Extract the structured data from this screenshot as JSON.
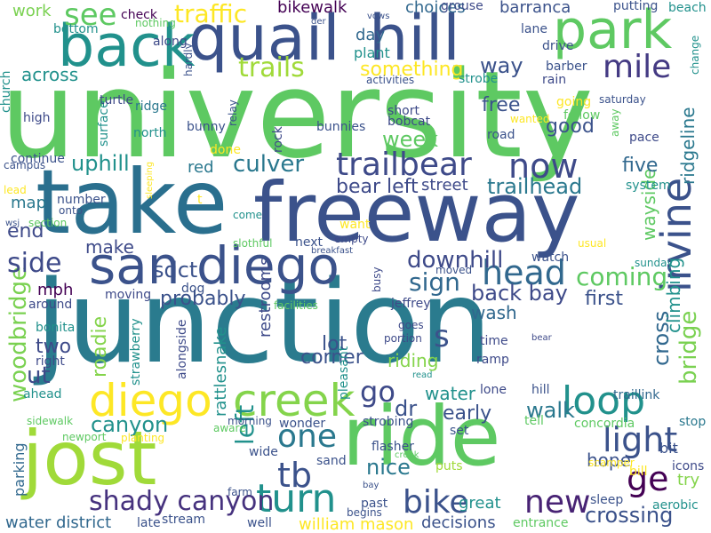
{
  "palette": {
    "purple": "#440154",
    "indigo": "#3b528b",
    "teal": "#21918c",
    "green": "#5ec962",
    "yellow": "#fde725"
  },
  "words": [
    {
      "text": "university",
      "color": "#5ec962"
    },
    {
      "text": "junction",
      "color": "#2a7b8e"
    },
    {
      "text": "take",
      "color": "#2a6f8e"
    },
    {
      "text": "freeway",
      "color": "#3b528b"
    },
    {
      "text": "ride",
      "color": "#5ec962"
    },
    {
      "text": "jost",
      "color": "#a0da39"
    },
    {
      "text": "quail",
      "color": "#3b528b"
    },
    {
      "text": "hill",
      "color": "#3b528b"
    },
    {
      "text": "back",
      "color": "#21918c"
    },
    {
      "text": "park",
      "color": "#5ec962"
    },
    {
      "text": "san diego",
      "color": "#3b528b"
    },
    {
      "text": "creek",
      "color": "#84d44b"
    },
    {
      "text": "diego",
      "color": "#fde725"
    },
    {
      "text": "trailbear",
      "color": "#3e4a89"
    },
    {
      "text": "turn",
      "color": "#21918c"
    },
    {
      "text": "loop",
      "color": "#21918c"
    },
    {
      "text": "irvine",
      "color": "#3b528b"
    },
    {
      "text": "head",
      "color": "#31688e"
    },
    {
      "text": "tb",
      "color": "#3b528b"
    },
    {
      "text": "ge",
      "color": "#440154"
    },
    {
      "text": "light",
      "color": "#3b528b"
    },
    {
      "text": "mile",
      "color": "#443a83"
    },
    {
      "text": "now",
      "color": "#3e4a89"
    },
    {
      "text": "bike",
      "color": "#3b528b"
    },
    {
      "text": "new",
      "color": "#482374"
    },
    {
      "text": "one",
      "color": "#2a788e"
    },
    {
      "text": "shady canyon",
      "color": "#46327e"
    },
    {
      "text": "woodbridge",
      "color": "#7ad151"
    },
    {
      "text": "side",
      "color": "#3e4a89"
    },
    {
      "text": "trails",
      "color": "#a0da39"
    },
    {
      "text": "traffic",
      "color": "#fde725"
    },
    {
      "text": "see",
      "color": "#5ec962"
    },
    {
      "text": "s",
      "color": "#3b528b"
    },
    {
      "text": "culver",
      "color": "#2a788e"
    },
    {
      "text": "sign",
      "color": "#31688e"
    },
    {
      "text": "coming",
      "color": "#5ec962"
    },
    {
      "text": "bridge",
      "color": "#7ad151"
    },
    {
      "text": "go",
      "color": "#3e4a89"
    },
    {
      "text": "left",
      "color": "#21918c"
    },
    {
      "text": "bear left",
      "color": "#3e4a89"
    },
    {
      "text": "trailhead",
      "color": "#2a788e"
    },
    {
      "text": "downhill",
      "color": "#3e4a89"
    },
    {
      "text": "back bay",
      "color": "#3e4a89"
    },
    {
      "text": "uphill",
      "color": "#21918c"
    },
    {
      "text": "canyon",
      "color": "#21918c"
    },
    {
      "text": "crossing",
      "color": "#3b528b"
    },
    {
      "text": "cross",
      "color": "#31688e"
    },
    {
      "text": "week",
      "color": "#5ec962"
    },
    {
      "text": "probably",
      "color": "#3b528b"
    },
    {
      "text": "ridgeline",
      "color": "#2a788e"
    },
    {
      "text": "wayside",
      "color": "#5ec962"
    },
    {
      "text": "climbing",
      "color": "#21918c"
    },
    {
      "text": "walk",
      "color": "#2a788e"
    },
    {
      "text": "early",
      "color": "#3b528b"
    },
    {
      "text": "nice",
      "color": "#2a788e"
    },
    {
      "text": "first",
      "color": "#3b528b"
    },
    {
      "text": "good",
      "color": "#3b528b"
    },
    {
      "text": "five",
      "color": "#31688e"
    },
    {
      "text": "free",
      "color": "#3b528b"
    },
    {
      "text": "way",
      "color": "#3b528b"
    },
    {
      "text": "something",
      "color": "#fde725"
    },
    {
      "text": "roadie",
      "color": "#84d44b"
    },
    {
      "text": "sdct",
      "color": "#3b528b"
    },
    {
      "text": "hope",
      "color": "#3b528b"
    },
    {
      "text": "bikewalk",
      "color": "#440154"
    },
    {
      "text": "choices",
      "color": "#31688e"
    },
    {
      "text": "barranca",
      "color": "#3b528b"
    },
    {
      "text": "water district",
      "color": "#31688e"
    },
    {
      "text": "william mason",
      "color": "#fde725"
    },
    {
      "text": "decisions",
      "color": "#3b528b"
    },
    {
      "text": "great",
      "color": "#21918c"
    },
    {
      "text": "across",
      "color": "#21918c"
    },
    {
      "text": "work",
      "color": "#7ad151"
    },
    {
      "text": "end",
      "color": "#3e4a89"
    },
    {
      "text": "ut",
      "color": "#3e4a89"
    },
    {
      "text": "two",
      "color": "#3e4a89"
    },
    {
      "text": "lot",
      "color": "#3b528b"
    },
    {
      "text": "corner",
      "color": "#3b528b"
    },
    {
      "text": "riding",
      "color": "#84d44b"
    },
    {
      "text": "water",
      "color": "#21918c"
    },
    {
      "text": "wash",
      "color": "#31688e"
    },
    {
      "text": "dr",
      "color": "#3b528b"
    },
    {
      "text": "street",
      "color": "#3e4a89"
    },
    {
      "text": "red",
      "color": "#2a788e"
    },
    {
      "text": "make",
      "color": "#3e4a89"
    },
    {
      "text": "map",
      "color": "#2a788e"
    },
    {
      "text": "mph",
      "color": "#440154"
    },
    {
      "text": "day",
      "color": "#31688e"
    },
    {
      "text": "plant",
      "color": "#21918c"
    },
    {
      "text": "restrooms",
      "color": "#3e4a89"
    },
    {
      "text": "rattlesnake",
      "color": "#21918c"
    },
    {
      "text": "parking",
      "color": "#31688e"
    },
    {
      "text": "bit",
      "color": "#3b528b"
    },
    {
      "text": "try",
      "color": "#84d44b"
    },
    {
      "text": "icons",
      "color": "#3e4a89"
    },
    {
      "text": "bill",
      "color": "#fde725"
    },
    {
      "text": "sleep",
      "color": "#3b528b"
    },
    {
      "text": "aerobic",
      "color": "#21918c"
    },
    {
      "text": "stop",
      "color": "#2a788e"
    },
    {
      "text": "concordia",
      "color": "#5ec962"
    },
    {
      "text": "traillink",
      "color": "#31688e"
    },
    {
      "text": "lone",
      "color": "#3e4a89"
    },
    {
      "text": "hill",
      "color": "#3b528b"
    },
    {
      "text": "time",
      "color": "#3e4a89"
    },
    {
      "text": "ramp",
      "color": "#3e4a89"
    },
    {
      "text": "tell",
      "color": "#5ec962"
    },
    {
      "text": "set",
      "color": "#3b528b"
    },
    {
      "text": "puts",
      "color": "#a0da39"
    },
    {
      "text": "flasher",
      "color": "#3b528b"
    },
    {
      "text": "past",
      "color": "#3b528b"
    },
    {
      "text": "sand",
      "color": "#3b528b"
    },
    {
      "text": "begins",
      "color": "#3b528b"
    },
    {
      "text": "entrance",
      "color": "#5ec962"
    },
    {
      "text": "scamper",
      "color": "#fde725"
    },
    {
      "text": "busy",
      "color": "#3e4a89"
    },
    {
      "text": "watch",
      "color": "#3b528b"
    },
    {
      "text": "moved",
      "color": "#3b528b"
    },
    {
      "text": "goes",
      "color": "#3e4a89"
    },
    {
      "text": "portion",
      "color": "#3e4a89"
    },
    {
      "text": "jeffrey",
      "color": "#3e4a89"
    },
    {
      "text": "wonder",
      "color": "#3b528b"
    },
    {
      "text": "pleasant",
      "color": "#21918c"
    },
    {
      "text": "strobing",
      "color": "#3b528b"
    },
    {
      "text": "morning",
      "color": "#3b528b"
    },
    {
      "text": "aware",
      "color": "#5ec962"
    },
    {
      "text": "wide",
      "color": "#3b528b"
    },
    {
      "text": "farm",
      "color": "#3b528b"
    },
    {
      "text": "stream",
      "color": "#3b528b"
    },
    {
      "text": "well",
      "color": "#3b528b"
    },
    {
      "text": "late",
      "color": "#3b528b"
    },
    {
      "text": "planting",
      "color": "#fde725"
    },
    {
      "text": "newport",
      "color": "#5ec962"
    },
    {
      "text": "sidewalk",
      "color": "#5ec962"
    },
    {
      "text": "ahead",
      "color": "#21918c"
    },
    {
      "text": "right",
      "color": "#3e4a89"
    },
    {
      "text": "bonita",
      "color": "#21918c"
    },
    {
      "text": "around",
      "color": "#3e4a89"
    },
    {
      "text": "moving",
      "color": "#3e4a89"
    },
    {
      "text": "strawberry",
      "color": "#21918c"
    },
    {
      "text": "alongside",
      "color": "#3e4a89"
    },
    {
      "text": "facilities",
      "color": "#5ec962"
    },
    {
      "text": "dog",
      "color": "#3b528b"
    },
    {
      "text": "slothful",
      "color": "#5ec962"
    },
    {
      "text": "breakfast",
      "color": "#3b528b"
    },
    {
      "text": "empty",
      "color": "#3e4a89"
    },
    {
      "text": "next",
      "color": "#3b528b"
    },
    {
      "text": "want",
      "color": "#fde725"
    },
    {
      "text": "come",
      "color": "#21918c"
    },
    {
      "text": "onto",
      "color": "#3b528b"
    },
    {
      "text": "number",
      "color": "#3b528b"
    },
    {
      "text": "lead",
      "color": "#fde725"
    },
    {
      "text": "wsj",
      "color": "#3b528b"
    },
    {
      "text": "section",
      "color": "#5ec962"
    },
    {
      "text": "continue",
      "color": "#3b528b"
    },
    {
      "text": "campus",
      "color": "#3b528b"
    },
    {
      "text": "surface",
      "color": "#21918c"
    },
    {
      "text": "north",
      "color": "#21918c"
    },
    {
      "text": "bunny",
      "color": "#3b528b"
    },
    {
      "text": "done",
      "color": "#fde725"
    },
    {
      "text": "rock",
      "color": "#3e4a89"
    },
    {
      "text": "bunnies",
      "color": "#3b528b"
    },
    {
      "text": "bobcat",
      "color": "#3e4a89"
    },
    {
      "text": "short",
      "color": "#3e4a89"
    },
    {
      "text": "road",
      "color": "#3b528b"
    },
    {
      "text": "wanted",
      "color": "#fde725"
    },
    {
      "text": "going",
      "color": "#fde725"
    },
    {
      "text": "follow",
      "color": "#5ec962"
    },
    {
      "text": "away",
      "color": "#5ec962"
    },
    {
      "text": "saturday",
      "color": "#3b528b"
    },
    {
      "text": "pace",
      "color": "#3e4a89"
    },
    {
      "text": "system",
      "color": "#21918c"
    },
    {
      "text": "usual",
      "color": "#fde725"
    },
    {
      "text": "sunday",
      "color": "#21918c"
    },
    {
      "text": "high",
      "color": "#3e4a89"
    },
    {
      "text": "ridge",
      "color": "#2a788e"
    },
    {
      "text": "turtle",
      "color": "#3e4a89"
    },
    {
      "text": "along",
      "color": "#3e4a89"
    },
    {
      "text": "hardly",
      "color": "#3b528b"
    },
    {
      "text": "nothing",
      "color": "#5ec962"
    },
    {
      "text": "bottom",
      "color": "#21918c"
    },
    {
      "text": "check",
      "color": "#440154"
    },
    {
      "text": "church",
      "color": "#21918c"
    },
    {
      "text": "relay",
      "color": "#3b528b"
    },
    {
      "text": "der",
      "color": "#3b528b"
    },
    {
      "text": "vows",
      "color": "#3b528b"
    },
    {
      "text": "activities",
      "color": "#3b528b"
    },
    {
      "text": "grouse",
      "color": "#3e4a89"
    },
    {
      "text": "lane",
      "color": "#3b528b"
    },
    {
      "text": "drive",
      "color": "#3b528b"
    },
    {
      "text": "putting",
      "color": "#3b528b"
    },
    {
      "text": "barber",
      "color": "#3b528b"
    },
    {
      "text": "rain",
      "color": "#3e4a89"
    },
    {
      "text": "strobe",
      "color": "#21918c"
    },
    {
      "text": "beach",
      "color": "#21918c"
    },
    {
      "text": "change",
      "color": "#21918c"
    },
    {
      "text": "read",
      "color": "#21918c"
    },
    {
      "text": "bay",
      "color": "#3b528b"
    },
    {
      "text": "creek",
      "color": "#5ec962"
    },
    {
      "text": "bear",
      "color": "#3e4a89"
    },
    {
      "text": "t",
      "color": "#fde725"
    },
    {
      "text": "sleeping",
      "color": "#fde725"
    }
  ]
}
